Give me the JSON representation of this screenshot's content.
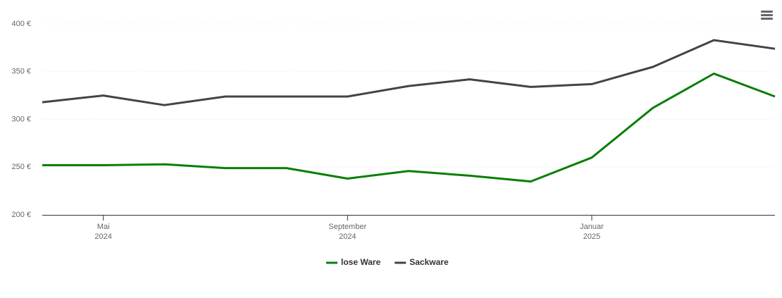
{
  "chart_data": {
    "type": "line",
    "x": [
      "2024-04",
      "2024-05",
      "2024-06",
      "2024-07",
      "2024-08",
      "2024-09",
      "2024-10",
      "2024-11",
      "2024-12",
      "2025-01",
      "2025-02",
      "2025-03",
      "2025-04"
    ],
    "series": [
      {
        "name": "lose Ware",
        "color": "#0a7e07",
        "values": [
          252,
          252,
          253,
          249,
          249,
          238,
          246,
          241,
          235,
          260,
          312,
          348,
          324
        ]
      },
      {
        "name": "Sackware",
        "color": "#434348",
        "values": [
          318,
          325,
          315,
          324,
          324,
          324,
          335,
          342,
          334,
          337,
          355,
          383,
          374
        ]
      }
    ],
    "xlim": [
      "2024-04",
      "2025-04"
    ],
    "xticks": [
      {
        "value": "2024-05",
        "label": "Mai\n2024"
      },
      {
        "value": "2024-09",
        "label": "September\n2024"
      },
      {
        "value": "2025-01",
        "label": "Januar\n2025"
      }
    ],
    "ylim": [
      200,
      400
    ],
    "yticks": [
      {
        "value": 200,
        "label": "200 €"
      },
      {
        "value": 250,
        "label": "250 €"
      },
      {
        "value": 300,
        "label": "300 €"
      },
      {
        "value": 350,
        "label": "350 €"
      },
      {
        "value": 400,
        "label": "400 €"
      }
    ],
    "grid": true,
    "legend": "bottom"
  }
}
